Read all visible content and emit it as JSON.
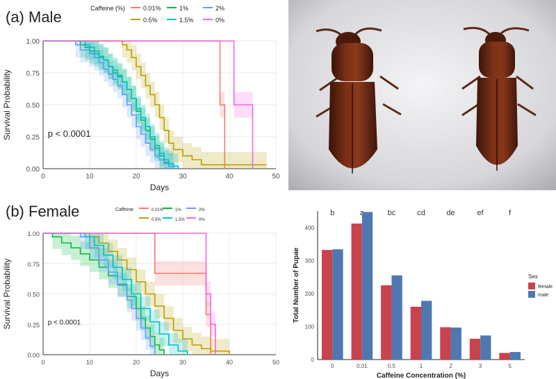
{
  "figure": {
    "panel_a_title": "(a) Male",
    "panel_b_title": "(b) Female"
  },
  "chart_data": [
    {
      "id": "male_survival",
      "type": "line",
      "title": "(a) Male",
      "legend_title": "Caffeine (%)",
      "xlabel": "Days",
      "ylabel": "Survival Probability",
      "xlim": [
        0,
        50
      ],
      "ylim": [
        0,
        1
      ],
      "xticks": [
        0,
        10,
        20,
        30,
        40,
        50
      ],
      "yticks": [
        "0.00",
        "0.25",
        "0.50",
        "0.75",
        "1.00"
      ],
      "annotation": "p < 0.0001",
      "legend_position": "top",
      "series": [
        {
          "name": "0.01%",
          "color": "#f8766d",
          "x": [
            0,
            38,
            38,
            39,
            39
          ],
          "y": [
            1,
            1,
            0.5,
            0.5,
            0
          ]
        },
        {
          "name": "1%",
          "color": "#00ba38",
          "x": [
            0,
            8,
            9,
            10,
            11,
            12,
            13,
            14,
            15,
            16,
            17,
            18,
            19,
            20,
            21,
            22,
            23,
            24,
            25,
            26,
            27,
            28
          ],
          "y": [
            1,
            0.97,
            0.95,
            0.92,
            0.9,
            0.87,
            0.85,
            0.8,
            0.75,
            0.72,
            0.68,
            0.62,
            0.55,
            0.45,
            0.38,
            0.3,
            0.23,
            0.16,
            0.1,
            0.05,
            0.02,
            0
          ]
        },
        {
          "name": "2%",
          "color": "#619cff",
          "x": [
            0,
            7,
            8,
            10,
            11,
            12,
            13,
            14,
            15,
            16,
            17,
            18,
            19,
            20,
            21,
            22,
            23,
            24,
            25,
            26,
            27,
            28
          ],
          "y": [
            1,
            0.97,
            0.93,
            0.9,
            0.87,
            0.83,
            0.78,
            0.74,
            0.7,
            0.65,
            0.58,
            0.5,
            0.42,
            0.33,
            0.27,
            0.2,
            0.15,
            0.1,
            0.07,
            0.04,
            0.02,
            0
          ]
        },
        {
          "name": "0.5%",
          "color": "#b79f00",
          "x": [
            0,
            17,
            18,
            19,
            20,
            21,
            22,
            23,
            24,
            25,
            26,
            27,
            28,
            30,
            32,
            34,
            48
          ],
          "y": [
            1,
            0.97,
            0.93,
            0.87,
            0.8,
            0.73,
            0.65,
            0.58,
            0.5,
            0.4,
            0.3,
            0.2,
            0.15,
            0.1,
            0.07,
            0.03,
            0.03
          ]
        },
        {
          "name": "1.5%",
          "color": "#00bfc4",
          "x": [
            0,
            9,
            10,
            11,
            12,
            13,
            14,
            15,
            16,
            17,
            18,
            19,
            20,
            21,
            22,
            23,
            24,
            25,
            26,
            27,
            28,
            29
          ],
          "y": [
            1,
            0.97,
            0.95,
            0.92,
            0.88,
            0.85,
            0.8,
            0.77,
            0.73,
            0.68,
            0.62,
            0.55,
            0.47,
            0.4,
            0.33,
            0.25,
            0.18,
            0.12,
            0.07,
            0.04,
            0.02,
            0
          ]
        },
        {
          "name": "0%",
          "color": "#f564e3",
          "x": [
            0,
            41,
            41,
            45,
            45
          ],
          "y": [
            1,
            1,
            0.5,
            0.5,
            0
          ]
        }
      ]
    },
    {
      "id": "female_survival",
      "type": "line",
      "title": "(b) Female",
      "legend_title": "Caffeine",
      "xlabel": "Days",
      "ylabel": "Survival Probability",
      "xlim": [
        0,
        50
      ],
      "ylim": [
        0,
        1
      ],
      "xticks": [
        0,
        10,
        20,
        30,
        40,
        50
      ],
      "yticks": [
        "0.00",
        "0.25",
        "0.50",
        "0.75",
        "1.00"
      ],
      "annotation": "p < 0.0001",
      "legend_position": "top",
      "series": [
        {
          "name": "0.01%",
          "color": "#f8766d",
          "x": [
            0,
            24,
            24,
            35,
            35,
            36,
            36
          ],
          "y": [
            1,
            1,
            0.67,
            0.67,
            0.33,
            0.33,
            0
          ]
        },
        {
          "name": "1%",
          "color": "#00ba38",
          "x": [
            0,
            2,
            4,
            6,
            8,
            10,
            12,
            14,
            16,
            18,
            20,
            21,
            22,
            23,
            24,
            25,
            26
          ],
          "y": [
            1,
            0.97,
            0.92,
            0.88,
            0.83,
            0.78,
            0.72,
            0.65,
            0.58,
            0.48,
            0.38,
            0.3,
            0.22,
            0.15,
            0.08,
            0.04,
            0
          ]
        },
        {
          "name": "2%",
          "color": "#619cff",
          "x": [
            0,
            8,
            10,
            12,
            14,
            16,
            18,
            19,
            20,
            21,
            22,
            23,
            24
          ],
          "y": [
            1,
            0.97,
            0.88,
            0.78,
            0.68,
            0.57,
            0.45,
            0.38,
            0.3,
            0.22,
            0.14,
            0.07,
            0
          ]
        },
        {
          "name": "0.5%",
          "color": "#b79f00",
          "x": [
            0,
            10,
            12,
            14,
            16,
            18,
            20,
            22,
            24,
            26,
            28,
            30,
            32,
            34,
            36,
            38,
            40
          ],
          "y": [
            1,
            0.97,
            0.92,
            0.85,
            0.78,
            0.7,
            0.6,
            0.5,
            0.4,
            0.3,
            0.2,
            0.13,
            0.08,
            0.05,
            0.03,
            0.03,
            0
          ]
        },
        {
          "name": "1.5%",
          "color": "#00bfc4",
          "x": [
            0,
            9,
            11,
            13,
            15,
            17,
            19,
            21,
            23,
            25,
            27,
            29,
            31
          ],
          "y": [
            1,
            0.97,
            0.9,
            0.82,
            0.72,
            0.62,
            0.5,
            0.38,
            0.27,
            0.17,
            0.08,
            0.03,
            0
          ]
        },
        {
          "name": "0%",
          "color": "#f564e3",
          "x": [
            0,
            35,
            35,
            36,
            36,
            37,
            37
          ],
          "y": [
            1,
            1,
            0.5,
            0.5,
            0.25,
            0.25,
            0
          ]
        }
      ]
    },
    {
      "id": "pupae_bar",
      "type": "bar",
      "xlabel": "Caffeine Concentration (%)",
      "ylabel": "Total Number of Pupae",
      "legend_title": "Sex",
      "legend_position": "right",
      "categories": [
        "0",
        "0.01",
        "0.5",
        "1",
        "2",
        "3",
        "5"
      ],
      "letters": [
        "b",
        "a",
        "bc",
        "cd",
        "de",
        "ef",
        "f"
      ],
      "ylim": [
        0,
        450
      ],
      "yticks": [
        "0",
        "100",
        "200",
        "300",
        "400"
      ],
      "series": [
        {
          "name": "female",
          "color": "#c8434e",
          "values": [
            332,
            412,
            225,
            160,
            98,
            63,
            20
          ]
        },
        {
          "name": "male",
          "color": "#5078b0",
          "values": [
            334,
            447,
            255,
            178,
            97,
            73,
            23
          ]
        }
      ]
    }
  ]
}
